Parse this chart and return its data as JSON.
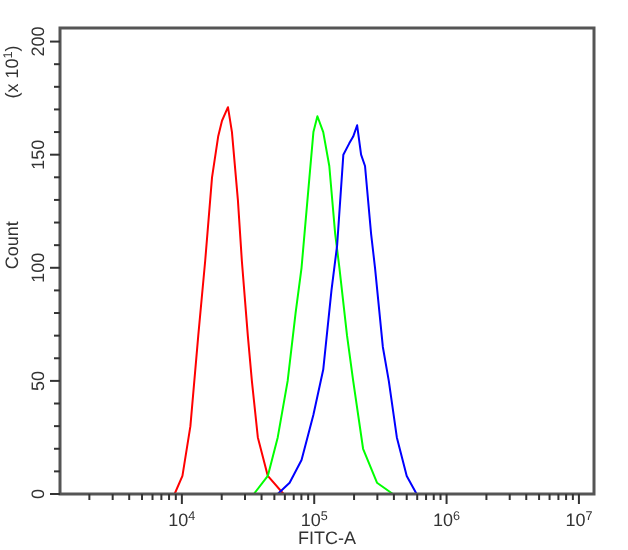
{
  "chart_data": {
    "type": "line",
    "xlabel": "FITC-A",
    "ylabel": "Count",
    "annotations": [
      "(x 10$^{1}$)"
    ],
    "log": "x",
    "grid": false,
    "xlim": [
      1200,
      13000000
    ],
    "xticks": [
      {
        "value": 2000,
        "label": null
      },
      {
        "value": 3000,
        "label": null
      },
      {
        "value": 4000,
        "label": null
      },
      {
        "value": 5000,
        "label": null
      },
      {
        "value": 6000,
        "label": null
      },
      {
        "value": 7000,
        "label": null
      },
      {
        "value": 8000,
        "label": null
      },
      {
        "value": 9000,
        "label": null
      },
      {
        "value": 10000,
        "label": "10$^{4}$"
      },
      {
        "value": 20000,
        "label": null
      },
      {
        "value": 30000,
        "label": null
      },
      {
        "value": 40000,
        "label": null
      },
      {
        "value": 50000,
        "label": null
      },
      {
        "value": 60000,
        "label": null
      },
      {
        "value": 70000,
        "label": null
      },
      {
        "value": 80000,
        "label": null
      },
      {
        "value": 90000,
        "label": null
      },
      {
        "value": 100000,
        "label": "10$^{5}$"
      },
      {
        "value": 200000,
        "label": null
      },
      {
        "value": 300000,
        "label": null
      },
      {
        "value": 400000,
        "label": null
      },
      {
        "value": 500000,
        "label": null
      },
      {
        "value": 600000,
        "label": null
      },
      {
        "value": 700000,
        "label": null
      },
      {
        "value": 800000,
        "label": null
      },
      {
        "value": 900000,
        "label": null
      },
      {
        "value": 1000000,
        "label": "10$^{6}$"
      },
      {
        "value": 2000000,
        "label": null
      },
      {
        "value": 3000000,
        "label": null
      },
      {
        "value": 4000000,
        "label": null
      },
      {
        "value": 5000000,
        "label": null
      },
      {
        "value": 6000000,
        "label": null
      },
      {
        "value": 7000000,
        "label": null
      },
      {
        "value": 8000000,
        "label": null
      },
      {
        "value": 9000000,
        "label": null
      },
      {
        "value": 10000000,
        "label": "10$^{7}$"
      }
    ],
    "ylim": [
      0,
      206
    ],
    "yticks": [
      0,
      {
        "value": 10,
        "label": null
      },
      {
        "value": 20,
        "label": null
      },
      {
        "value": 30,
        "label": null
      },
      {
        "value": 40,
        "label": null
      },
      50,
      {
        "value": 60,
        "label": null
      },
      {
        "value": 70,
        "label": null
      },
      {
        "value": 80,
        "label": null
      },
      {
        "value": 90,
        "label": null
      },
      100,
      {
        "value": 110,
        "label": null
      },
      {
        "value": 120,
        "label": null
      },
      {
        "value": 130,
        "label": null
      },
      {
        "value": 140,
        "label": null
      },
      150,
      {
        "value": 160,
        "label": null
      },
      {
        "value": 170,
        "label": null
      },
      {
        "value": 180,
        "label": null
      },
      {
        "value": 190,
        "label": null
      },
      200
    ],
    "series": [
      {
        "color": "#ff0000",
        "x": [
          8810,
          10100,
          11600,
          13300,
          15000,
          16900,
          18800,
          20100,
          22300,
          23900,
          26500,
          28400,
          31500,
          33800,
          37500,
          44600,
          58700
        ],
        "values": [
          0,
          8,
          30,
          70,
          103,
          140,
          158,
          165,
          171,
          160,
          130,
          103,
          70,
          50,
          25,
          8,
          0
        ]
      },
      {
        "color": "#00ff00",
        "x": [
          35000,
          44600,
          53000,
          63000,
          72300,
          80200,
          92000,
          98600,
          105700,
          117000,
          130000,
          144000,
          155000,
          177000,
          197000,
          234000,
          298000,
          393000
        ],
        "values": [
          0,
          8,
          25,
          50,
          80,
          100,
          140,
          160,
          167,
          160,
          145,
          115,
          100,
          70,
          50,
          20,
          5,
          0
        ]
      },
      {
        "color": "#0000ff",
        "x": [
          53000,
          65200,
          80200,
          88900,
          98600,
          117000,
          135000,
          149000,
          166000,
          184000,
          197000,
          211000,
          226000,
          242000,
          269000,
          288000,
          330000,
          366000,
          421000,
          500000,
          594000
        ],
        "values": [
          0,
          5,
          15,
          25,
          35,
          55,
          90,
          110,
          150,
          155,
          158,
          163,
          150,
          145,
          115,
          100,
          65,
          50,
          25,
          8,
          0
        ]
      }
    ]
  }
}
